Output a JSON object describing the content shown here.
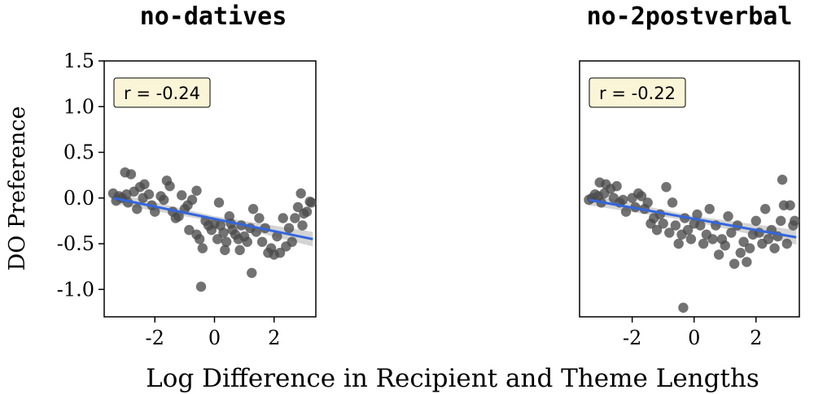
{
  "chart_data": [
    {
      "type": "scatter",
      "title": "no-datives",
      "annotation": "r = -0.24",
      "xlabel": "Log Difference in Recipient and Theme Lengths",
      "ylabel": "DO Preference",
      "xlim": [
        -3.7,
        3.4
      ],
      "ylim": [
        -1.3,
        1.5
      ],
      "xticks": [
        -2,
        0,
        2
      ],
      "xtick_labels": [
        "-2",
        "0",
        "2"
      ],
      "yticks": [
        1.5,
        1.0,
        0.5,
        0.0,
        -0.5,
        -1.0
      ],
      "ytick_labels": [
        "1.5",
        "1.0",
        "0.5",
        "0.0",
        "-0.5",
        "-1.0"
      ],
      "point_color": "#4a4a4a",
      "line_color": "#3366dd",
      "band_color": "#c9c9c9",
      "fit": {
        "x": [
          -3.4,
          3.3
        ],
        "y": [
          0.0,
          -0.45
        ]
      },
      "points": [
        {
          "x": -3.4,
          "y": 0.05
        },
        {
          "x": -3.3,
          "y": -0.03
        },
        {
          "x": -3.2,
          "y": 0.02
        },
        {
          "x": -3.1,
          "y": 0.0
        },
        {
          "x": -3.0,
          "y": 0.28
        },
        {
          "x": -2.95,
          "y": 0.04
        },
        {
          "x": -2.9,
          "y": -0.05
        },
        {
          "x": -2.8,
          "y": 0.26
        },
        {
          "x": -2.7,
          "y": 0.07
        },
        {
          "x": -2.6,
          "y": -0.12
        },
        {
          "x": -2.5,
          "y": 0.12
        },
        {
          "x": -2.4,
          "y": 0.0
        },
        {
          "x": -2.35,
          "y": 0.15
        },
        {
          "x": -2.2,
          "y": 0.04
        },
        {
          "x": -2.1,
          "y": -0.08
        },
        {
          "x": -2.0,
          "y": -0.15
        },
        {
          "x": -1.8,
          "y": 0.02
        },
        {
          "x": -1.7,
          "y": -0.02
        },
        {
          "x": -1.6,
          "y": 0.19
        },
        {
          "x": -1.5,
          "y": 0.13
        },
        {
          "x": -1.4,
          "y": -0.15
        },
        {
          "x": -1.3,
          "y": -0.22
        },
        {
          "x": -1.2,
          "y": -0.2
        },
        {
          "x": -1.1,
          "y": 0.03
        },
        {
          "x": -1.0,
          "y": -0.12
        },
        {
          "x": -0.9,
          "y": -0.08
        },
        {
          "x": -0.85,
          "y": -0.35
        },
        {
          "x": -0.75,
          "y": -0.02
        },
        {
          "x": -0.6,
          "y": 0.08
        },
        {
          "x": -0.6,
          "y": -0.4
        },
        {
          "x": -0.5,
          "y": -0.45
        },
        {
          "x": -0.45,
          "y": -0.97
        },
        {
          "x": -0.4,
          "y": -0.55
        },
        {
          "x": -0.3,
          "y": -0.25
        },
        {
          "x": -0.2,
          "y": -0.3
        },
        {
          "x": -0.1,
          "y": -0.35
        },
        {
          "x": 0.0,
          "y": -0.28
        },
        {
          "x": 0.1,
          "y": -0.45
        },
        {
          "x": 0.15,
          "y": -0.05
        },
        {
          "x": 0.2,
          "y": -0.3
        },
        {
          "x": 0.3,
          "y": -0.38
        },
        {
          "x": 0.35,
          "y": -0.57
        },
        {
          "x": 0.4,
          "y": -0.48
        },
        {
          "x": 0.5,
          "y": -0.2
        },
        {
          "x": 0.55,
          "y": -0.28
        },
        {
          "x": 0.6,
          "y": -0.35
        },
        {
          "x": 0.7,
          "y": -0.4
        },
        {
          "x": 0.8,
          "y": -0.45
        },
        {
          "x": 0.85,
          "y": -0.57
        },
        {
          "x": 0.9,
          "y": -0.3
        },
        {
          "x": 1.0,
          "y": -0.42
        },
        {
          "x": 1.1,
          "y": -0.48
        },
        {
          "x": 1.2,
          "y": -0.33
        },
        {
          "x": 1.25,
          "y": -0.82
        },
        {
          "x": 1.3,
          "y": -0.12
        },
        {
          "x": 1.4,
          "y": -0.37
        },
        {
          "x": 1.5,
          "y": -0.22
        },
        {
          "x": 1.6,
          "y": -0.48
        },
        {
          "x": 1.7,
          "y": -0.33
        },
        {
          "x": 1.8,
          "y": -0.6
        },
        {
          "x": 1.9,
          "y": -0.55
        },
        {
          "x": 2.0,
          "y": -0.62
        },
        {
          "x": 2.1,
          "y": -0.42
        },
        {
          "x": 2.2,
          "y": -0.6
        },
        {
          "x": 2.3,
          "y": -0.22
        },
        {
          "x": 2.4,
          "y": -0.53
        },
        {
          "x": 2.5,
          "y": -0.33
        },
        {
          "x": 2.6,
          "y": -0.48
        },
        {
          "x": 2.7,
          "y": -0.22
        },
        {
          "x": 2.8,
          "y": -0.1
        },
        {
          "x": 2.9,
          "y": 0.05
        },
        {
          "x": 2.95,
          "y": -0.3
        },
        {
          "x": 3.0,
          "y": -0.17
        },
        {
          "x": 3.1,
          "y": -0.15
        },
        {
          "x": 3.2,
          "y": -0.04
        },
        {
          "x": 3.25,
          "y": -0.05
        }
      ]
    },
    {
      "type": "scatter",
      "title": "no-2postverbal",
      "annotation": "r = -0.22",
      "xlabel": "Log Difference in Recipient and Theme Lengths",
      "ylabel": "DO Preference",
      "xlim": [
        -3.7,
        3.4
      ],
      "ylim": [
        -1.3,
        1.5
      ],
      "xticks": [
        -2,
        0,
        2
      ],
      "xtick_labels": [
        "-2",
        "0",
        "2"
      ],
      "point_color": "#4a4a4a",
      "line_color": "#3366dd",
      "band_color": "#c9c9c9",
      "fit": {
        "x": [
          -3.4,
          3.3
        ],
        "y": [
          -0.02,
          -0.43
        ]
      },
      "points": [
        {
          "x": -3.4,
          "y": -0.02
        },
        {
          "x": -3.3,
          "y": 0.0
        },
        {
          "x": -3.2,
          "y": 0.04
        },
        {
          "x": -3.1,
          "y": 0.02
        },
        {
          "x": -3.05,
          "y": 0.17
        },
        {
          "x": -3.0,
          "y": -0.05
        },
        {
          "x": -2.9,
          "y": 0.05
        },
        {
          "x": -2.85,
          "y": 0.15
        },
        {
          "x": -2.7,
          "y": 0.1
        },
        {
          "x": -2.6,
          "y": 0.0
        },
        {
          "x": -2.5,
          "y": 0.13
        },
        {
          "x": -2.4,
          "y": -0.05
        },
        {
          "x": -2.3,
          "y": -0.02
        },
        {
          "x": -2.2,
          "y": -0.15
        },
        {
          "x": -2.0,
          "y": 0.0
        },
        {
          "x": -1.9,
          "y": -0.1
        },
        {
          "x": -1.8,
          "y": 0.05
        },
        {
          "x": -1.7,
          "y": 0.02
        },
        {
          "x": -1.6,
          "y": -0.12
        },
        {
          "x": -1.5,
          "y": -0.05
        },
        {
          "x": -1.4,
          "y": -0.28
        },
        {
          "x": -1.3,
          "y": -0.22
        },
        {
          "x": -1.2,
          "y": -0.35
        },
        {
          "x": -1.1,
          "y": -0.18
        },
        {
          "x": -1.0,
          "y": -0.28
        },
        {
          "x": -0.9,
          "y": 0.12
        },
        {
          "x": -0.8,
          "y": -0.38
        },
        {
          "x": -0.7,
          "y": -0.05
        },
        {
          "x": -0.6,
          "y": -0.3
        },
        {
          "x": -0.5,
          "y": -0.5
        },
        {
          "x": -0.4,
          "y": -0.4
        },
        {
          "x": -0.35,
          "y": -1.2
        },
        {
          "x": -0.3,
          "y": -0.22
        },
        {
          "x": -0.2,
          "y": -0.35
        },
        {
          "x": -0.1,
          "y": -0.45
        },
        {
          "x": 0.0,
          "y": -0.28
        },
        {
          "x": 0.1,
          "y": -0.18
        },
        {
          "x": 0.2,
          "y": -0.3
        },
        {
          "x": 0.3,
          "y": -0.5
        },
        {
          "x": 0.4,
          "y": -0.4
        },
        {
          "x": 0.5,
          "y": -0.12
        },
        {
          "x": 0.6,
          "y": -0.45
        },
        {
          "x": 0.7,
          "y": -0.3
        },
        {
          "x": 0.8,
          "y": -0.62
        },
        {
          "x": 0.9,
          "y": -0.45
        },
        {
          "x": 1.0,
          "y": -0.52
        },
        {
          "x": 1.1,
          "y": -0.2
        },
        {
          "x": 1.2,
          "y": -0.38
        },
        {
          "x": 1.3,
          "y": -0.72
        },
        {
          "x": 1.4,
          "y": -0.3
        },
        {
          "x": 1.5,
          "y": -0.6
        },
        {
          "x": 1.6,
          "y": -0.48
        },
        {
          "x": 1.7,
          "y": -0.7
        },
        {
          "x": 1.8,
          "y": -0.55
        },
        {
          "x": 1.9,
          "y": -0.4
        },
        {
          "x": 2.0,
          "y": -0.25
        },
        {
          "x": 2.1,
          "y": -0.38
        },
        {
          "x": 2.2,
          "y": -0.5
        },
        {
          "x": 2.3,
          "y": -0.12
        },
        {
          "x": 2.4,
          "y": -0.45
        },
        {
          "x": 2.5,
          "y": -0.35
        },
        {
          "x": 2.6,
          "y": -0.55
        },
        {
          "x": 2.7,
          "y": -0.42
        },
        {
          "x": 2.8,
          "y": -0.25
        },
        {
          "x": 2.85,
          "y": 0.2
        },
        {
          "x": 2.9,
          "y": -0.08
        },
        {
          "x": 3.0,
          "y": -0.5
        },
        {
          "x": 3.1,
          "y": -0.08
        },
        {
          "x": 3.2,
          "y": -0.3
        },
        {
          "x": 3.25,
          "y": -0.25
        }
      ]
    }
  ]
}
